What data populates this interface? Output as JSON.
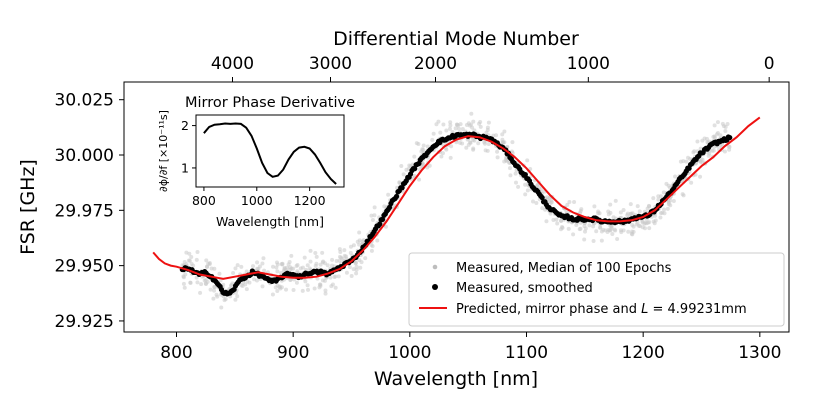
{
  "chart_data": {
    "type": "scatter",
    "main": {
      "xlabel": "Wavelength [nm]",
      "ylabel": "FSR [GHz]",
      "top_xlabel": "Differential Mode Number",
      "xlim": [
        755,
        1325
      ],
      "ylim": [
        29.92,
        30.033
      ],
      "xticks": [
        800,
        900,
        1000,
        1100,
        1200,
        1300
      ],
      "yticks": [
        29.925,
        29.95,
        29.975,
        30.0,
        30.025
      ],
      "ytick_labels": [
        "29.925",
        "29.950",
        "29.975",
        "30.000",
        "30.025"
      ],
      "top_ticks": [
        {
          "label": "4000",
          "wavelength": 848
        },
        {
          "label": "3000",
          "wavelength": 932
        },
        {
          "label": "2000",
          "wavelength": 1022
        },
        {
          "label": "1000",
          "wavelength": 1153
        },
        {
          "label": "0",
          "wavelength": 1308
        }
      ],
      "series": [
        {
          "name": "Measured, Median of 100 Epochs",
          "style": "scatter-light",
          "color": "#c8c8c8",
          "x_range": [
            805,
            1275
          ],
          "spread": 0.004
        },
        {
          "name": "Measured, smoothed",
          "style": "scatter-dots",
          "color": "#000000",
          "x": [
            805,
            810,
            815,
            820,
            825,
            830,
            835,
            840,
            845,
            850,
            855,
            860,
            865,
            870,
            875,
            880,
            885,
            890,
            895,
            900,
            905,
            910,
            915,
            920,
            925,
            930,
            935,
            940,
            945,
            950,
            955,
            960,
            965,
            970,
            975,
            980,
            985,
            990,
            995,
            1000,
            1005,
            1010,
            1015,
            1020,
            1025,
            1030,
            1035,
            1040,
            1045,
            1050,
            1055,
            1060,
            1065,
            1070,
            1075,
            1080,
            1085,
            1090,
            1095,
            1100,
            1105,
            1110,
            1115,
            1120,
            1125,
            1130,
            1135,
            1140,
            1145,
            1150,
            1155,
            1160,
            1165,
            1170,
            1175,
            1180,
            1185,
            1190,
            1195,
            1200,
            1205,
            1210,
            1215,
            1220,
            1225,
            1230,
            1235,
            1240,
            1245,
            1250,
            1255,
            1260,
            1265,
            1270,
            1275
          ],
          "y": [
            29.948,
            29.949,
            29.947,
            29.946,
            29.947,
            29.945,
            29.942,
            29.938,
            29.937,
            29.94,
            29.944,
            29.945,
            29.947,
            29.946,
            29.945,
            29.943,
            29.943,
            29.945,
            29.946,
            29.946,
            29.945,
            29.946,
            29.947,
            29.947,
            29.947,
            29.946,
            29.948,
            29.949,
            29.951,
            29.952,
            29.955,
            29.958,
            29.962,
            29.966,
            29.97,
            29.974,
            29.979,
            29.983,
            29.987,
            29.991,
            29.995,
            29.998,
            30.001,
            30.004,
            30.006,
            30.007,
            30.008,
            30.009,
            30.009,
            30.009,
            30.009,
            30.008,
            30.008,
            30.007,
            30.005,
            30.003,
            30.0,
            29.996,
            29.993,
            29.99,
            29.986,
            29.983,
            29.979,
            29.976,
            29.974,
            29.972,
            29.972,
            29.971,
            29.971,
            29.971,
            29.971,
            29.971,
            29.97,
            29.97,
            29.97,
            29.97,
            29.97,
            29.971,
            29.972,
            29.972,
            29.973,
            29.975,
            29.978,
            29.981,
            29.984,
            29.988,
            29.991,
            29.995,
            29.998,
            30.001,
            30.003,
            30.005,
            30.006,
            30.007,
            30.008
          ]
        },
        {
          "name": "Predicted, mirror phase and L = 4.99231mm",
          "style": "line",
          "color": "#ee1111",
          "x": [
            780,
            785,
            790,
            795,
            800,
            810,
            820,
            830,
            840,
            850,
            860,
            870,
            880,
            890,
            900,
            910,
            920,
            930,
            940,
            950,
            960,
            970,
            980,
            990,
            1000,
            1010,
            1020,
            1030,
            1040,
            1050,
            1060,
            1070,
            1080,
            1090,
            1100,
            1110,
            1120,
            1130,
            1140,
            1150,
            1160,
            1170,
            1180,
            1190,
            1200,
            1210,
            1220,
            1230,
            1240,
            1250,
            1260,
            1270,
            1280,
            1290,
            1300
          ],
          "y": [
            29.956,
            29.953,
            29.951,
            29.95,
            29.9495,
            29.948,
            29.946,
            29.945,
            29.944,
            29.945,
            29.946,
            29.947,
            29.946,
            29.945,
            29.9445,
            29.9445,
            29.945,
            29.9465,
            29.9485,
            29.952,
            29.957,
            29.963,
            29.97,
            29.978,
            29.986,
            29.993,
            29.999,
            30.004,
            30.007,
            30.0085,
            30.008,
            30.006,
            30.003,
            29.999,
            29.994,
            29.988,
            29.982,
            29.977,
            29.974,
            29.972,
            29.9705,
            29.97,
            29.97,
            29.9705,
            29.972,
            29.975,
            29.98,
            29.985,
            29.99,
            29.995,
            29.999,
            30.004,
            30.008,
            30.013,
            30.017
          ]
        }
      ]
    },
    "inset": {
      "title": "Mirror Phase Derivative",
      "xlabel": "Wavelength [nm]",
      "ylabel": "∂ϕ/∂f [×10⁻¹¹s]",
      "xlim": [
        770,
        1330
      ],
      "ylim": [
        0.55,
        2.25
      ],
      "xticks": [
        800,
        1000,
        1200
      ],
      "yticks": [
        1,
        2
      ],
      "x": [
        800,
        820,
        840,
        860,
        880,
        900,
        920,
        940,
        960,
        980,
        1000,
        1020,
        1040,
        1060,
        1080,
        1100,
        1120,
        1140,
        1160,
        1180,
        1200,
        1220,
        1240,
        1260,
        1280,
        1300
      ],
      "y": [
        1.82,
        1.97,
        2.02,
        2.03,
        2.05,
        2.04,
        2.05,
        2.04,
        1.95,
        1.76,
        1.46,
        1.12,
        0.88,
        0.79,
        0.82,
        0.96,
        1.2,
        1.38,
        1.48,
        1.5,
        1.46,
        1.32,
        1.12,
        0.9,
        0.74,
        0.62
      ]
    }
  },
  "legend": {
    "items": [
      {
        "label": "Measured, Median of 100 Epochs"
      },
      {
        "label": "Measured, smoothed"
      },
      {
        "label_prefix": "Predicted, mirror phase and ",
        "label_symbol": "L",
        "label_suffix": " = 4.99231mm"
      }
    ]
  }
}
